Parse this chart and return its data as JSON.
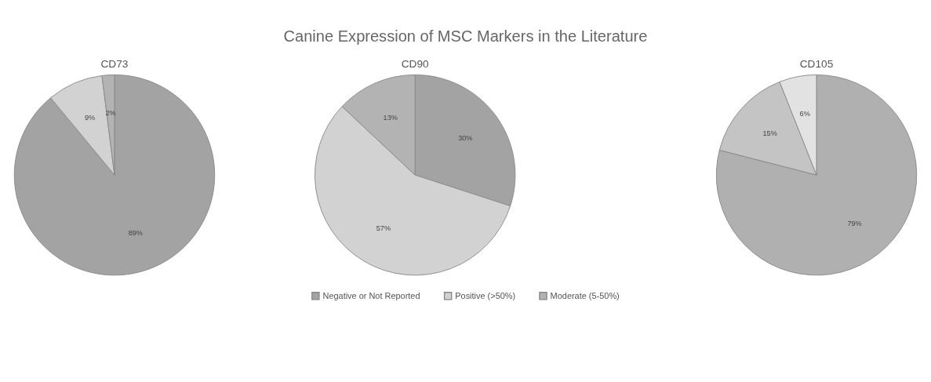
{
  "chart_data": [
    {
      "type": "pie",
      "title": "CD73",
      "annotations": [
        "Canine Expression of MSC Markers in the Literature"
      ],
      "categories": [
        null,
        null,
        null
      ],
      "values": [
        89,
        9,
        2
      ],
      "value_labels": [
        "89%",
        "9%",
        "2%"
      ],
      "colors": [
        "#a3a3a3",
        "#d2d2d2",
        "#b3b3b3"
      ]
    },
    {
      "type": "pie",
      "title": "CD90",
      "legend": "bottom",
      "categories": [
        "Negative or Not Reported",
        "Positive (>50%)",
        "Moderate (5-50%)"
      ],
      "values": [
        30,
        57,
        13
      ],
      "value_labels": [
        "30%",
        "57%",
        "13%"
      ],
      "colors": [
        "#a3a3a3",
        "#d2d2d2",
        "#b3b3b3"
      ]
    },
    {
      "type": "pie",
      "title": "CD105",
      "categories": [
        null,
        null,
        null
      ],
      "values": [
        79,
        15,
        6
      ],
      "value_labels": [
        "79%",
        "15%",
        "6%"
      ],
      "colors": [
        "#b0b0b0",
        "#c4c4c4",
        "#e2e2e2"
      ]
    }
  ]
}
